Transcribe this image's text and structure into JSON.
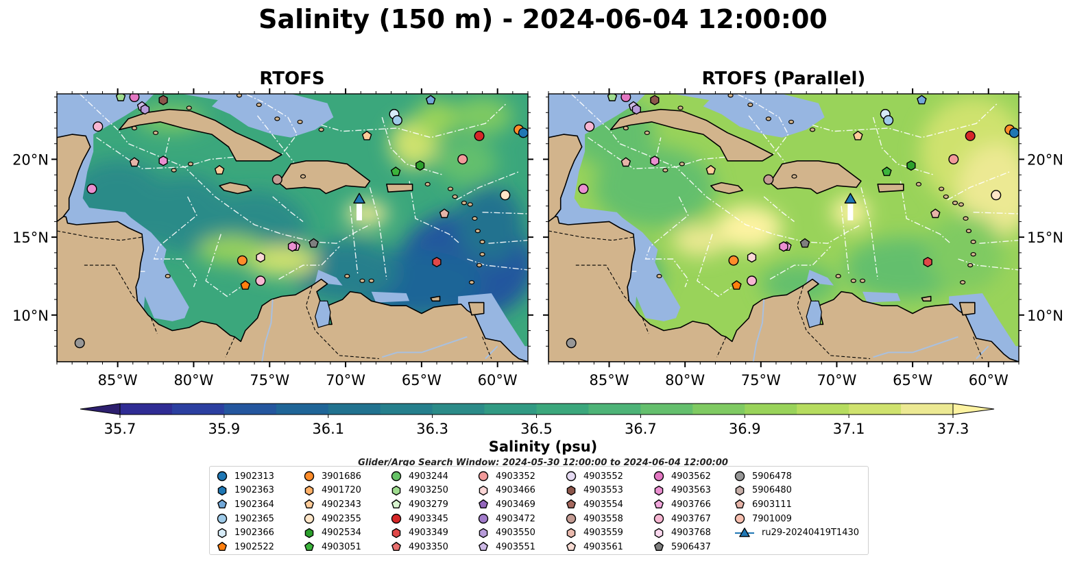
{
  "title": "Salinity (150 m) - 2024-06-04 12:00:00",
  "panels": [
    {
      "title": "RTOFS",
      "variant": "rtofs"
    },
    {
      "title": "RTOFS (Parallel)",
      "variant": "parallel"
    }
  ],
  "map": {
    "lon_range": [
      -89,
      -58
    ],
    "lat_range": [
      7,
      24.2
    ],
    "lon_ticks": [
      {
        "value": -85,
        "label": "85°W"
      },
      {
        "value": -80,
        "label": "80°W"
      },
      {
        "value": -75,
        "label": "75°W"
      },
      {
        "value": -70,
        "label": "70°W"
      },
      {
        "value": -65,
        "label": "65°W"
      },
      {
        "value": -60,
        "label": "60°W"
      }
    ],
    "lat_ticks": [
      {
        "value": 20,
        "label": "20°N"
      },
      {
        "value": 15,
        "label": "15°N"
      },
      {
        "value": 10,
        "label": "10°N"
      }
    ],
    "colors": {
      "land": "#d2b48c",
      "shallow": "#97b6e1",
      "river": "#a9c0df"
    }
  },
  "colorbar": {
    "label": "Salinity (psu)",
    "min": 35.6,
    "max": 37.4,
    "step": 0.1,
    "tick_labels": [
      "35.7",
      "35.9",
      "36.1",
      "36.3",
      "36.5",
      "36.7",
      "36.9",
      "37.1",
      "37.3"
    ],
    "colors": [
      "#2d1f6e",
      "#2f2c94",
      "#2b3fa0",
      "#24569e",
      "#1f6597",
      "#21728f",
      "#257f8c",
      "#2b8b88",
      "#319a83",
      "#3ba77c",
      "#4db377",
      "#64bf6d",
      "#7fca62",
      "#99d35a",
      "#b6dc5f",
      "#cfe26e",
      "#ece993",
      "#fdf3a1"
    ]
  },
  "search_window": "Glider/Argo Search Window: 2024-05-30 12:00:00 to 2024-06-04 12:00:00",
  "legend": {
    "columns": [
      [
        {
          "label": "1902313",
          "marker": "circle",
          "color": "#1f77b4"
        },
        {
          "label": "1902363",
          "marker": "hexagon",
          "color": "#1f77b4"
        },
        {
          "label": "1902364",
          "marker": "pentagon",
          "color": "#72a8d8"
        },
        {
          "label": "1902365",
          "marker": "circle",
          "color": "#9ecae8"
        },
        {
          "label": "1902366",
          "marker": "hexagon",
          "color": "#d6ebf7"
        },
        {
          "label": "1902522",
          "marker": "pentagon",
          "color": "#ff7f0e"
        }
      ],
      [
        {
          "label": "3901686",
          "marker": "circle",
          "color": "#ff8c2a"
        },
        {
          "label": "4901720",
          "marker": "hexagon",
          "color": "#ffb168"
        },
        {
          "label": "4902343",
          "marker": "pentagon",
          "color": "#ffcc99"
        },
        {
          "label": "4902355",
          "marker": "circle",
          "color": "#ffe6c8"
        },
        {
          "label": "4902534",
          "marker": "hexagon",
          "color": "#2ca02c"
        },
        {
          "label": "4903051",
          "marker": "pentagon",
          "color": "#3cb43c"
        }
      ],
      [
        {
          "label": "4903244",
          "marker": "circle",
          "color": "#66c266"
        },
        {
          "label": "4903250",
          "marker": "hexagon",
          "color": "#9fdc8f"
        },
        {
          "label": "4903279",
          "marker": "pentagon",
          "color": "#d9f5d0"
        },
        {
          "label": "4903345",
          "marker": "circle",
          "color": "#d62728"
        },
        {
          "label": "4903349",
          "marker": "hexagon",
          "color": "#e04848"
        },
        {
          "label": "4903350",
          "marker": "pentagon",
          "color": "#e8706f"
        }
      ],
      [
        {
          "label": "4903352",
          "marker": "circle",
          "color": "#f29a9a"
        },
        {
          "label": "4903466",
          "marker": "hexagon",
          "color": "#fcd7d7"
        },
        {
          "label": "4903469",
          "marker": "pentagon",
          "color": "#9467bd"
        },
        {
          "label": "4903472",
          "marker": "circle",
          "color": "#a27ccb"
        },
        {
          "label": "4903550",
          "marker": "hexagon",
          "color": "#b79bd9"
        },
        {
          "label": "4903551",
          "marker": "pentagon",
          "color": "#cdb9e6"
        }
      ],
      [
        {
          "label": "4903552",
          "marker": "circle",
          "color": "#e5daf2"
        },
        {
          "label": "4903553",
          "marker": "hexagon",
          "color": "#8c564b"
        },
        {
          "label": "4903554",
          "marker": "pentagon",
          "color": "#a5685e"
        },
        {
          "label": "4903558",
          "marker": "circle",
          "color": "#c49c94"
        },
        {
          "label": "4903559",
          "marker": "hexagon",
          "color": "#e9b9ad"
        },
        {
          "label": "4903561",
          "marker": "pentagon",
          "color": "#f8dcd4"
        }
      ],
      [
        {
          "label": "4903562",
          "marker": "circle",
          "color": "#e377c2"
        },
        {
          "label": "4903563",
          "marker": "hexagon",
          "color": "#ea8fd0"
        },
        {
          "label": "4903766",
          "marker": "pentagon",
          "color": "#f2a8dd"
        },
        {
          "label": "4903767",
          "marker": "circle",
          "color": "#f7b6d2"
        },
        {
          "label": "4903768",
          "marker": "hexagon",
          "color": "#fbd8ee"
        },
        {
          "label": "5906437",
          "marker": "pentagon",
          "color": "#7f7f7f"
        }
      ],
      [
        {
          "label": "5906478",
          "marker": "circle",
          "color": "#979797"
        },
        {
          "label": "5906480",
          "marker": "hexagon",
          "color": "#c7b0aa"
        },
        {
          "label": "6903111",
          "marker": "pentagon",
          "color": "#e6b4a8"
        },
        {
          "label": "7901009",
          "marker": "circle",
          "color": "#f8c0b0"
        },
        {
          "label": "ru29-20240419T1430",
          "marker": "triangle",
          "color": "#1f77b4"
        }
      ]
    ]
  },
  "floats": [
    {
      "lon": -84.8,
      "lat": 24.0,
      "marker": "pentagon",
      "color": "#9fdc8f"
    },
    {
      "lon": -83.9,
      "lat": 24.0,
      "marker": "circle",
      "color": "#e377c2"
    },
    {
      "lon": -83.4,
      "lat": 23.4,
      "marker": "pentagon",
      "color": "#cdb9e6"
    },
    {
      "lon": -83.2,
      "lat": 23.2,
      "marker": "hexagon",
      "color": "#b79bd9"
    },
    {
      "lon": -82.0,
      "lat": 23.8,
      "marker": "hexagon",
      "color": "#8c564b"
    },
    {
      "lon": -86.3,
      "lat": 22.1,
      "marker": "circle",
      "color": "#f7b6d2"
    },
    {
      "lon": -83.9,
      "lat": 19.8,
      "marker": "pentagon",
      "color": "#e6b4a8"
    },
    {
      "lon": -82.0,
      "lat": 19.9,
      "marker": "hexagon",
      "color": "#ea8fd0"
    },
    {
      "lon": -78.3,
      "lat": 19.3,
      "marker": "pentagon",
      "color": "#ffcc99"
    },
    {
      "lon": -86.7,
      "lat": 18.1,
      "marker": "circle",
      "color": "#ea8fd0"
    },
    {
      "lon": -74.5,
      "lat": 18.7,
      "marker": "circle",
      "color": "#c49c94"
    },
    {
      "lon": -66.8,
      "lat": 22.9,
      "marker": "circle",
      "color": "#d6ebf7"
    },
    {
      "lon": -66.6,
      "lat": 22.5,
      "marker": "circle",
      "color": "#9ecae8"
    },
    {
      "lon": -64.4,
      "lat": 23.8,
      "marker": "pentagon",
      "color": "#72a8d8"
    },
    {
      "lon": -68.6,
      "lat": 21.5,
      "marker": "pentagon",
      "color": "#ffcc99"
    },
    {
      "lon": -66.7,
      "lat": 19.2,
      "marker": "pentagon",
      "color": "#3cb43c"
    },
    {
      "lon": -65.1,
      "lat": 19.6,
      "marker": "hexagon",
      "color": "#2ca02c"
    },
    {
      "lon": -61.2,
      "lat": 21.5,
      "marker": "circle",
      "color": "#d62728"
    },
    {
      "lon": -62.3,
      "lat": 20.0,
      "marker": "circle",
      "color": "#f29a9a"
    },
    {
      "lon": -58.6,
      "lat": 21.9,
      "marker": "circle",
      "color": "#ff8c2a"
    },
    {
      "lon": -58.3,
      "lat": 21.7,
      "marker": "circle",
      "color": "#1f77b4"
    },
    {
      "lon": -59.5,
      "lat": 17.7,
      "marker": "circle",
      "color": "#ffe6c8"
    },
    {
      "lon": -63.5,
      "lat": 16.5,
      "marker": "pentagon",
      "color": "#e6b4a8"
    },
    {
      "lon": -76.8,
      "lat": 13.5,
      "marker": "circle",
      "color": "#ff8c2a"
    },
    {
      "lon": -75.6,
      "lat": 13.7,
      "marker": "hexagon",
      "color": "#fcd7d7"
    },
    {
      "lon": -73.3,
      "lat": 14.4,
      "marker": "pentagon",
      "color": "#f2a8dd"
    },
    {
      "lon": -73.5,
      "lat": 14.4,
      "marker": "hexagon",
      "color": "#ea8fd0"
    },
    {
      "lon": -72.1,
      "lat": 14.6,
      "marker": "pentagon",
      "color": "#7f7f7f"
    },
    {
      "lon": -76.6,
      "lat": 11.9,
      "marker": "pentagon",
      "color": "#ff7f0e"
    },
    {
      "lon": -75.6,
      "lat": 12.2,
      "marker": "circle",
      "color": "#f7b6d2"
    },
    {
      "lon": -64.0,
      "lat": 13.4,
      "marker": "hexagon",
      "color": "#e04848"
    },
    {
      "lon": -87.5,
      "lat": 8.2,
      "marker": "circle",
      "color": "#979797"
    }
  ],
  "glider": {
    "lon": -69.1,
    "lat": 17.4,
    "color": "#1f77b4"
  }
}
